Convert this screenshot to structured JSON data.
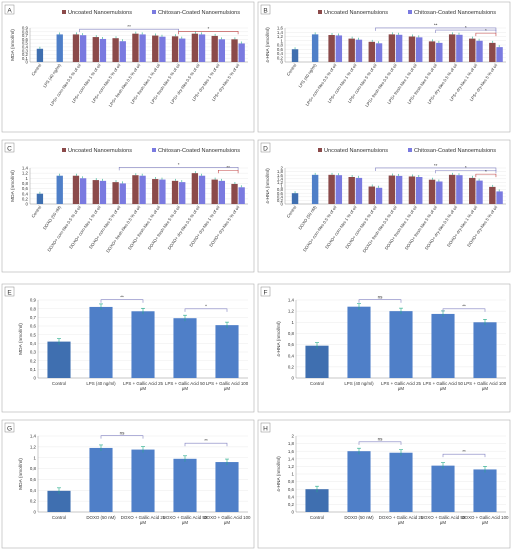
{
  "colors": {
    "uncoated": "#8B4A4A",
    "coated": "#7A7AE0",
    "single": "#4F7FC8",
    "control": "#3F6FB0",
    "bracket": "#8080C0",
    "bracket_red": "#C04040",
    "axis": "#999999",
    "grid": "#E6E6E6",
    "text": "#333333"
  },
  "chart_data": [
    {
      "panel": "A",
      "type": "bar",
      "legend": [
        "Uncoated Nanoemulsions",
        "Chitosan-Coated Nanoemulsions"
      ],
      "ylabel": "MDA (nmol/ml)",
      "ylim": [
        0,
        0.9
      ],
      "yticks": [
        "0",
        "0,1",
        "0,2",
        "0,3",
        "0,4",
        "0,5",
        "0,6",
        "0,7",
        "0,8",
        "0,9"
      ],
      "categories": [
        "Control",
        "LPS (40 ng/ml)",
        "LPS+ corn-Nes 0.5 % of oil",
        "LPS+ corn-Nes 1 % of oil",
        "LPS+ corn-Nes 5 % of oil",
        "LPS+ fresh-Nes 0.5 % of oil",
        "LPS+ fresh-Nes 1 % of oil",
        "LPS+ fresh-Nes 5 % of oil",
        "LPS+ dry-Nes 0.5 % of oil",
        "LPS+ dry-Nes 1 % of oil",
        "LPS+ dry-Nes 5 % of oil"
      ],
      "series": [
        {
          "name": "Uncoated Nanoemulsions",
          "values": [
            0.35,
            0.73,
            0.73,
            0.66,
            0.63,
            0.75,
            0.7,
            0.68,
            0.75,
            0.69,
            0.6
          ]
        },
        {
          "name": "Chitosan-Coated Nanoemulsions",
          "values": [
            null,
            null,
            0.71,
            0.61,
            0.55,
            0.73,
            0.67,
            0.62,
            0.73,
            0.6,
            0.49
          ]
        }
      ],
      "annotations": [
        "**",
        "*"
      ]
    },
    {
      "panel": "B",
      "type": "bar",
      "legend": [
        "Uncoated Nanoemulsions",
        "Chitosan-Coated Nanoemulsions"
      ],
      "ylabel": "4-HNA (nmol/ml)",
      "ylim": [
        0,
        1.6
      ],
      "yticks": [
        "0",
        "0,2",
        "0,4",
        "0,6",
        "0,8",
        "1",
        "1,2",
        "1,4",
        "1,6"
      ],
      "categories": [
        "Control",
        "LPS (40 ng/ml)",
        "LPS+ corn-Nes 0.5 % of oil",
        "LPS+ corn-Nes 1 % of oil",
        "LPS+ corn-Nes 5 % of oil",
        "LPS+ fresh-Nes 0.5 % of oil",
        "LPS+ fresh-Nes 1 % of oil",
        "LPS+ fresh-Nes 5 % of oil",
        "LPS+ dry-Nes 0.5 % of oil",
        "LPS+ dry-Nes 1 % of oil",
        "LPS+ dry-Nes 5 % of oil"
      ],
      "series": [
        {
          "name": "Uncoated Nanoemulsions",
          "values": [
            0.6,
            1.3,
            1.27,
            1.1,
            0.95,
            1.3,
            1.2,
            0.97,
            1.3,
            1.1,
            0.9
          ]
        },
        {
          "name": "Chitosan-Coated Nanoemulsions",
          "values": [
            null,
            null,
            1.25,
            1.05,
            0.88,
            1.28,
            1.16,
            0.9,
            1.28,
            1.0,
            0.7
          ]
        }
      ],
      "annotations": [
        "**",
        "*",
        "*"
      ]
    },
    {
      "panel": "C",
      "type": "bar",
      "legend": [
        "Uncoated Nanoemulsions",
        "Chitosan-Coated Nanoemulsions"
      ],
      "ylabel": "MDA (nmol/ml)",
      "ylim": [
        0,
        1.4
      ],
      "yticks": [
        "0",
        "0,2",
        "0,4",
        "0,6",
        "0,8",
        "1",
        "1,2",
        "1,4"
      ],
      "categories": [
        "Control",
        "DOXO (50 nM)",
        "DOXO+ corn-Nes 0.5 % of oil",
        "DOXO+ corn-Nes 1 % of oil",
        "DOXO+ corn-Nes 5 % of oil",
        "DOXO+ fresh-Nes 0.5 % of oil",
        "DOXO+ fresh-Nes 1 % of oil",
        "DOXO+ fresh-Nes 5 % of oil",
        "DOXO+ dry-Nes 0.5 % of oil",
        "DOXO+ dry-Nes 1 % of oil",
        "DOXO+ dry-Nes 5 % of oil"
      ],
      "series": [
        {
          "name": "Uncoated Nanoemulsions",
          "values": [
            0.4,
            1.1,
            1.1,
            0.93,
            0.85,
            1.12,
            0.97,
            0.9,
            1.2,
            0.95,
            0.78
          ]
        },
        {
          "name": "Chitosan-Coated Nanoemulsions",
          "values": [
            null,
            null,
            1.0,
            0.9,
            0.8,
            1.1,
            0.95,
            0.85,
            1.1,
            0.9,
            0.65
          ]
        }
      ],
      "annotations": [
        "*",
        "**"
      ]
    },
    {
      "panel": "D",
      "type": "bar",
      "legend": [
        "Uncoated Nanoemulsions",
        "Chitosan-Coated Nanoemulsions"
      ],
      "ylabel": "4-HNA (nmol/ml)",
      "ylim": [
        0,
        2
      ],
      "yticks": [
        "0",
        "0,2",
        "0,4",
        "0,6",
        "0,8",
        "1",
        "1,2",
        "1,4",
        "1,6",
        "1,8",
        "2"
      ],
      "categories": [
        "Control",
        "DOXO (50 nM)",
        "DOXO+ corn-Nes 0.5 % of oil",
        "DOXO+ corn-Nes 1 % of oil",
        "DOXO+ corn-Nes 5 % of oil",
        "DOXO+ fresh-Nes 0.5 % of oil",
        "DOXO+ fresh-Nes 1 % of oil",
        "DOXO+ fresh-Nes 5 % of oil",
        "DOXO+ dry-Nes 0.5 % of oil",
        "DOXO+ dry-Nes 1 % of oil",
        "DOXO+ dry-Nes 5 % of oil"
      ],
      "series": [
        {
          "name": "Uncoated Nanoemulsions",
          "values": [
            0.6,
            1.62,
            1.62,
            1.5,
            0.97,
            1.58,
            1.53,
            1.35,
            1.62,
            1.45,
            0.95
          ]
        },
        {
          "name": "Chitosan-Coated Nanoemulsions",
          "values": [
            null,
            null,
            1.6,
            1.45,
            0.9,
            1.56,
            1.5,
            1.25,
            1.6,
            1.3,
            0.7
          ]
        }
      ],
      "annotations": [
        "**",
        "*",
        "*"
      ]
    },
    {
      "panel": "E",
      "type": "bar",
      "ylabel": "MDA (nmol/ml)",
      "ylim": [
        0,
        0.9
      ],
      "yticks": [
        "0",
        "0,1",
        "0,2",
        "0,3",
        "0,4",
        "0,5",
        "0,6",
        "0,7",
        "0,8",
        "0,9"
      ],
      "categories": [
        "Control",
        "LPS (40 ng/ml)",
        "LPS + Gallic Acid 25 μM",
        "LPS + Gallic Acid 50 μM",
        "LPS + Gallic Acid 100 μM"
      ],
      "series": [
        {
          "name": "",
          "values": [
            0.42,
            0.82,
            0.77,
            0.69,
            0.61
          ]
        }
      ],
      "annotations": [
        "**",
        "*"
      ]
    },
    {
      "panel": "F",
      "type": "bar",
      "ylabel": "4-HNA (nmol/ml)",
      "ylim": [
        0,
        1.4
      ],
      "yticks": [
        "0",
        "0,2",
        "0,4",
        "0,6",
        "0,8",
        "1",
        "1,2",
        "1,4"
      ],
      "categories": [
        "Control",
        "LPS (40 ng/ml)",
        "LPS + Gallic Acid 25 μM",
        "LPS + Gallic Acid 50 μM",
        "LPS + Gallic Acid 100 μM"
      ],
      "series": [
        {
          "name": "",
          "values": [
            0.58,
            1.28,
            1.2,
            1.15,
            1.0
          ]
        }
      ],
      "annotations": [
        "ns",
        "**"
      ]
    },
    {
      "panel": "G",
      "type": "bar",
      "ylabel": "MDA (nmol/ml)",
      "ylim": [
        0,
        1.4
      ],
      "yticks": [
        "0",
        "0,2",
        "0,4",
        "0,6",
        "0,8",
        "1",
        "1,2",
        "1,4"
      ],
      "categories": [
        "Control",
        "DOXO (50 nM)",
        "DOXO + Gallic Acid 25 μM",
        "DOXO + Gallic Acid 50 μM",
        "DOXO + Gallic Acid 100 μM"
      ],
      "series": [
        {
          "name": "",
          "values": [
            0.39,
            1.18,
            1.15,
            0.98,
            0.92
          ]
        }
      ],
      "annotations": [
        "ns",
        "**"
      ]
    },
    {
      "panel": "H",
      "type": "bar",
      "ylabel": "4-HNA (nmol/ml)",
      "ylim": [
        0,
        2
      ],
      "yticks": [
        "0",
        "0,2",
        "0,4",
        "0,6",
        "0,8",
        "1",
        "1,2",
        "1,4",
        "1,6",
        "1,8",
        "2"
      ],
      "categories": [
        "Control",
        "DOXO (50 nM)",
        "DOXO + Gallic Acid 25 μM",
        "DOXO + Gallic Acid 50 μM",
        "DOXO + Gallic Acid 100 μM"
      ],
      "series": [
        {
          "name": "",
          "values": [
            0.6,
            1.6,
            1.56,
            1.22,
            1.12
          ]
        }
      ],
      "annotations": [
        "ns",
        "**"
      ]
    }
  ]
}
